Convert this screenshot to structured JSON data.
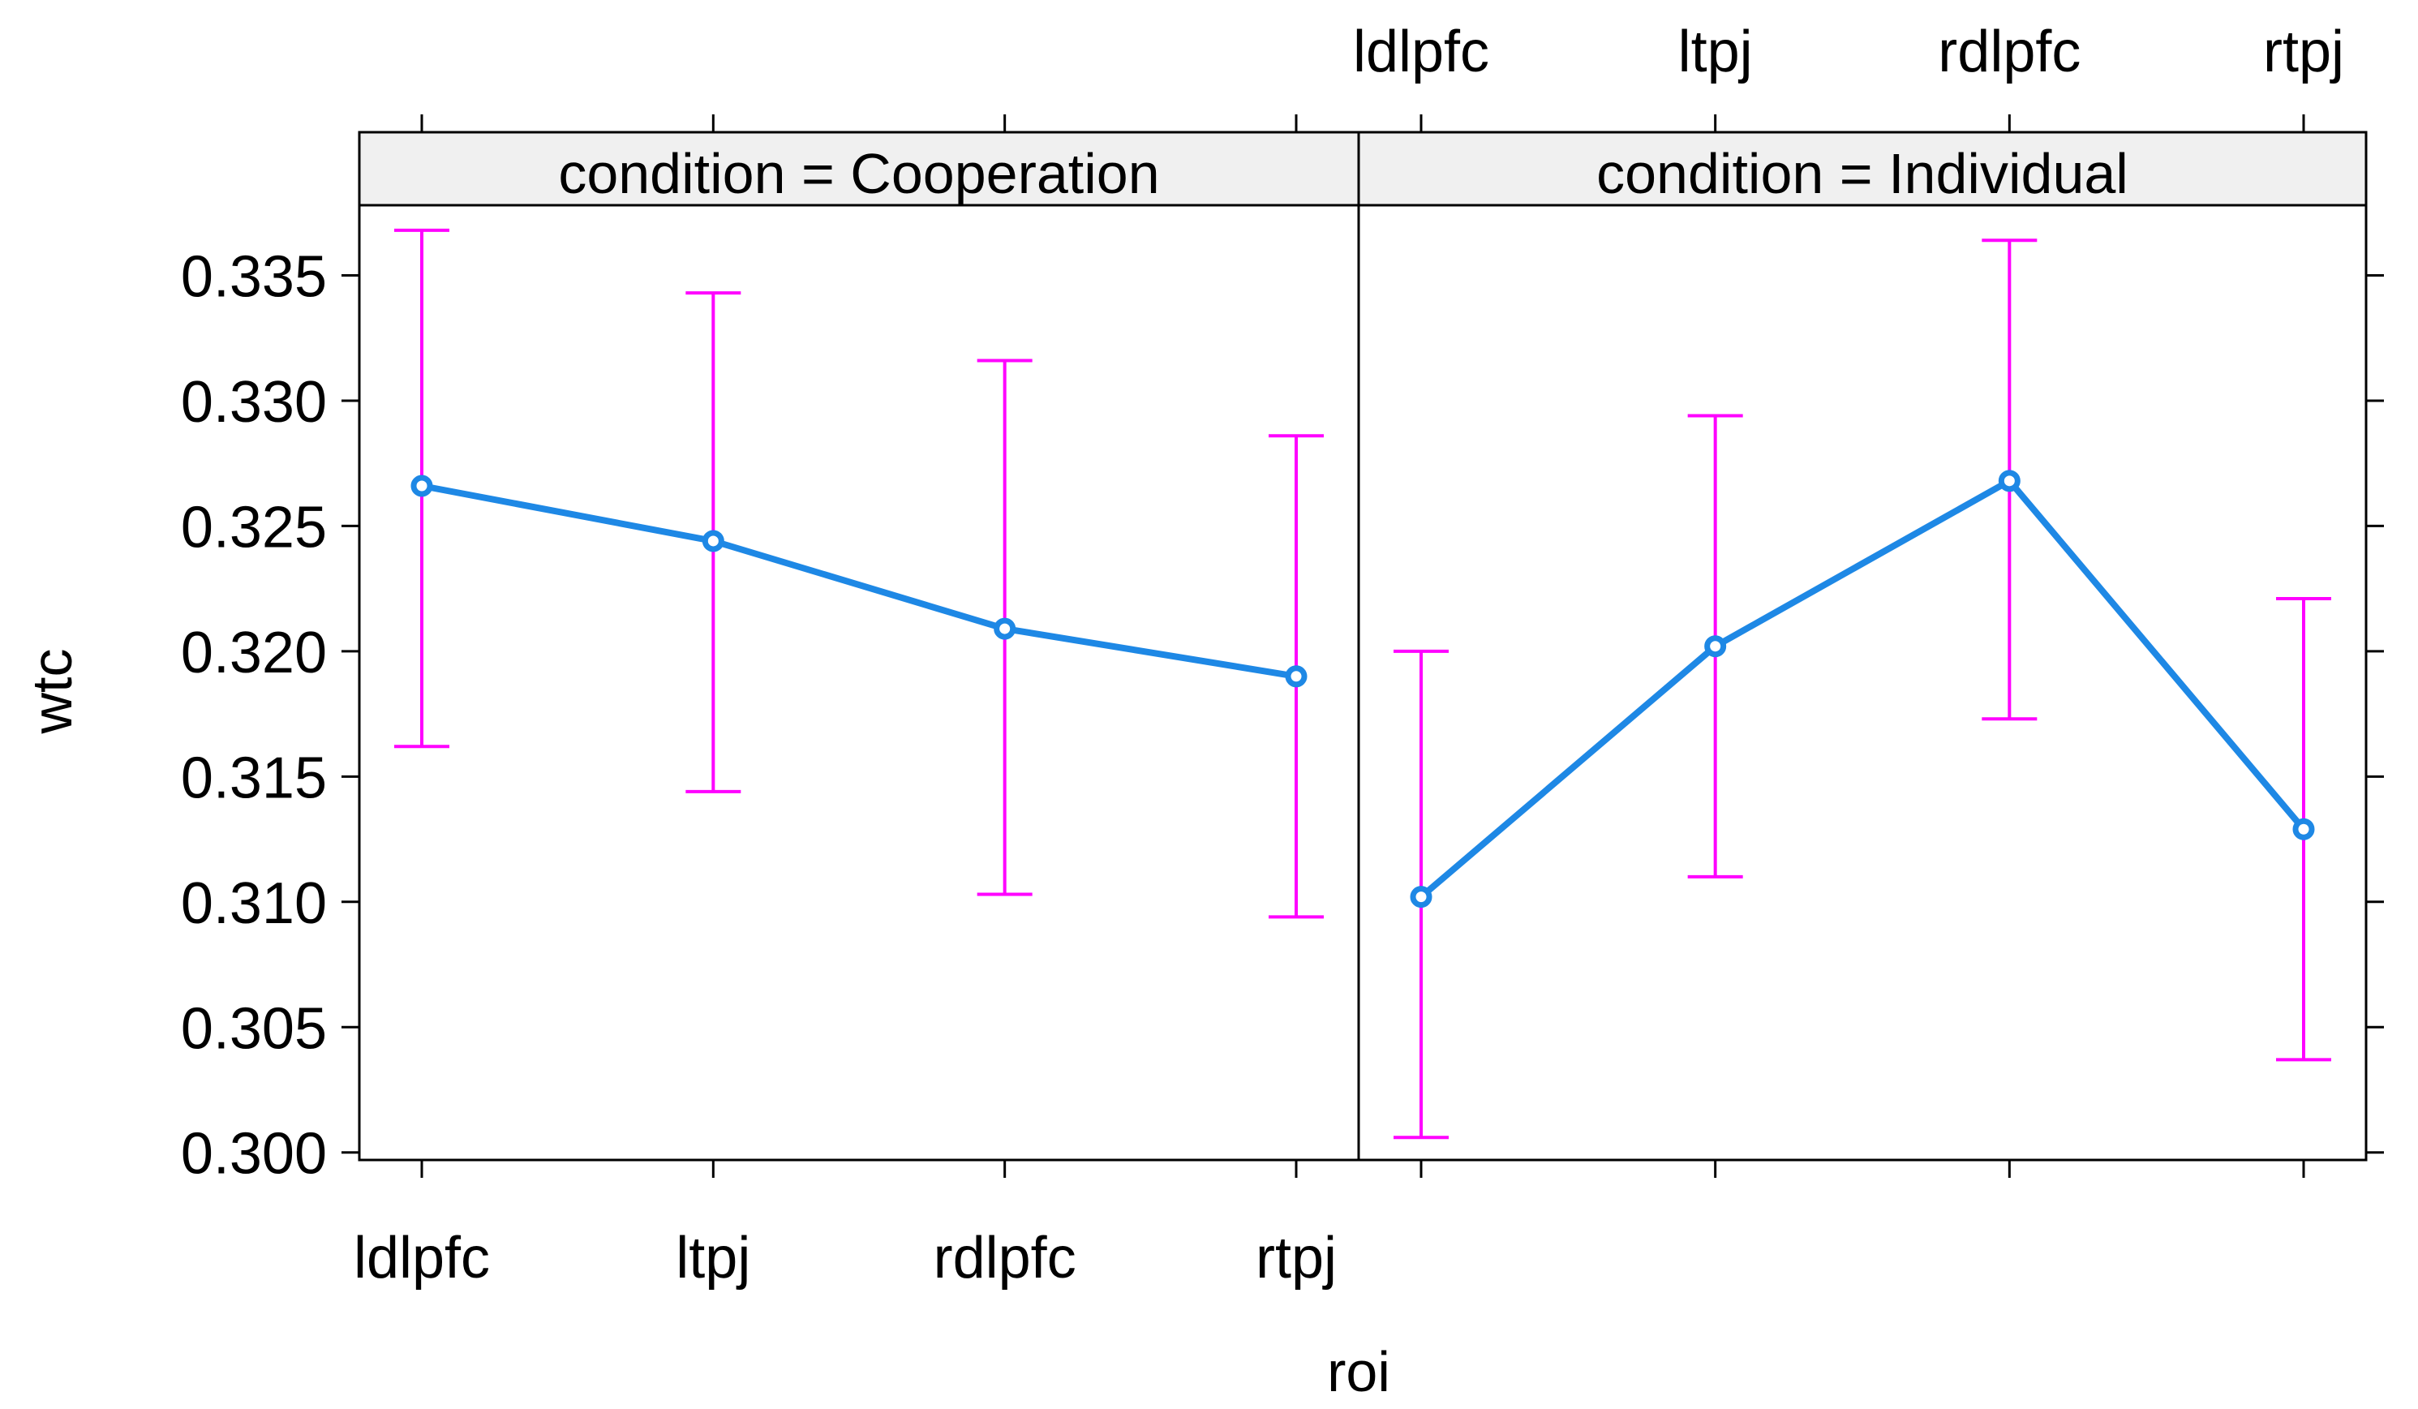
{
  "chart_data": {
    "type": "line",
    "xlabel": "roi",
    "ylabel": "wtc",
    "categories": [
      "ldlpfc",
      "ltpj",
      "rdlpfc",
      "rtpj"
    ],
    "yticks": [
      "0.300",
      "0.305",
      "0.310",
      "0.315",
      "0.320",
      "0.325",
      "0.330",
      "0.335"
    ],
    "ylim": [
      0.2997,
      0.3378
    ],
    "grid": false,
    "line_color": "#1e88e5",
    "errorbar_color": "#ff00ff",
    "strip_color": "#f0f0f0",
    "panels": [
      {
        "strip_label": "condition = Cooperation",
        "condition": "Cooperation",
        "y": [
          0.3266,
          0.3244,
          0.3209,
          0.319
        ],
        "lower": [
          0.3162,
          0.3144,
          0.3103,
          0.3094
        ],
        "upper": [
          0.3368,
          0.3343,
          0.3316,
          0.3286
        ]
      },
      {
        "strip_label": "condition = Individual",
        "condition": "Individual",
        "y": [
          0.3102,
          0.3202,
          0.3268,
          0.3129
        ],
        "lower": [
          0.3006,
          0.311,
          0.3173,
          0.3037
        ],
        "upper": [
          0.32,
          0.3294,
          0.3364,
          0.3221
        ]
      }
    ]
  }
}
